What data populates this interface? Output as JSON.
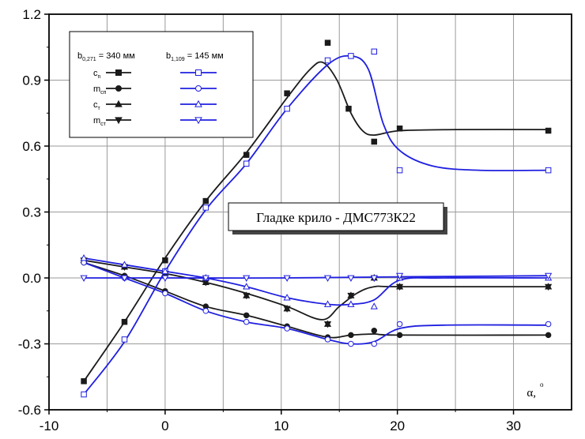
{
  "chart_data": {
    "type": "line",
    "xlabel": "α,",
    "xlabel_sup": "o",
    "xlim": [
      -10,
      35
    ],
    "ylim": [
      -0.6,
      1.2
    ],
    "xticks": [
      "-10",
      "0",
      "10",
      "20",
      "30"
    ],
    "yticks": [
      "-0.6",
      "-0.3",
      "0.0",
      "0.3",
      "0.6",
      "0.9",
      "1.2"
    ],
    "xtick_values": [
      -10,
      0,
      10,
      20,
      30
    ],
    "ytick_values": [
      -0.6,
      -0.3,
      0.0,
      0.3,
      0.6,
      0.9,
      1.2
    ],
    "grid": true,
    "annotation": "Гладке крило - ДМС773К22",
    "legend": {
      "placement": "top-left",
      "col1_header": {
        "base": "b",
        "sub": "0,271",
        "rest": " = 340 мм"
      },
      "col2_header": {
        "base": "b",
        "sub": "1,109",
        "rest": " = 145 мм"
      },
      "rows": [
        {
          "base": "c",
          "sub": "n"
        },
        {
          "base": "m",
          "sub": "сп"
        },
        {
          "base": "c",
          "sub": "т"
        },
        {
          "base": "m",
          "sub": "ст"
        }
      ]
    },
    "colors": {
      "b0271": "#1a1a1a",
      "b1109": "#1f1fe0"
    },
    "series": [
      {
        "group": "b0271",
        "marker": "square",
        "filled": true,
        "points": [
          [
            -7,
            -0.47
          ],
          [
            -3.5,
            -0.2
          ],
          [
            0,
            0.08
          ],
          [
            3.5,
            0.35
          ],
          [
            7,
            0.56
          ],
          [
            10.5,
            0.84
          ],
          [
            14,
            1.07
          ],
          [
            15.8,
            0.77
          ],
          [
            18,
            0.62
          ],
          [
            20.2,
            0.68
          ],
          [
            33,
            0.67
          ]
        ],
        "curve": [
          [
            -7,
            -0.47
          ],
          [
            -3.5,
            -0.2
          ],
          [
            0,
            0.09
          ],
          [
            3.5,
            0.35
          ],
          [
            7,
            0.57
          ],
          [
            10.5,
            0.82
          ],
          [
            12.5,
            0.95
          ],
          [
            13.6,
            0.98
          ],
          [
            14.8,
            0.9
          ],
          [
            16,
            0.75
          ],
          [
            17,
            0.67
          ],
          [
            18,
            0.65
          ],
          [
            20.2,
            0.67
          ],
          [
            25,
            0.675
          ],
          [
            33,
            0.675
          ]
        ]
      },
      {
        "group": "b0271",
        "marker": "circle",
        "filled": true,
        "points": [
          [
            -7,
            0.07
          ],
          [
            -3.5,
            0.01
          ],
          [
            0,
            -0.06
          ],
          [
            3.5,
            -0.13
          ],
          [
            7,
            -0.17
          ],
          [
            10.5,
            -0.22
          ],
          [
            14,
            -0.27
          ],
          [
            16,
            -0.26
          ],
          [
            18,
            -0.24
          ],
          [
            20.2,
            -0.26
          ],
          [
            33,
            -0.26
          ]
        ],
        "curve": [
          [
            -7,
            0.07
          ],
          [
            -3.5,
            0.01
          ],
          [
            0,
            -0.06
          ],
          [
            3.5,
            -0.13
          ],
          [
            7,
            -0.17
          ],
          [
            10.5,
            -0.22
          ],
          [
            14,
            -0.27
          ],
          [
            16,
            -0.26
          ],
          [
            18,
            -0.255
          ],
          [
            20.2,
            -0.26
          ],
          [
            33,
            -0.26
          ]
        ]
      },
      {
        "group": "b0271",
        "marker": "triangle-up",
        "filled": true,
        "points": [
          [
            -7,
            0.08
          ],
          [
            -3.5,
            0.05
          ],
          [
            0,
            0.02
          ],
          [
            3.5,
            -0.02
          ],
          [
            7,
            -0.08
          ],
          [
            10.5,
            -0.14
          ],
          [
            14,
            -0.21
          ],
          [
            16,
            -0.08
          ],
          [
            18,
            0.0
          ],
          [
            20.2,
            -0.04
          ],
          [
            33,
            -0.04
          ]
        ],
        "curve": [
          [
            -7,
            0.08
          ],
          [
            -3.5,
            0.05
          ],
          [
            0,
            0.02
          ],
          [
            3.5,
            -0.02
          ],
          [
            7,
            -0.07
          ],
          [
            10.5,
            -0.13
          ],
          [
            13.5,
            -0.19
          ],
          [
            15,
            -0.13
          ],
          [
            16.5,
            -0.07
          ],
          [
            18,
            -0.04
          ],
          [
            20.2,
            -0.04
          ],
          [
            33,
            -0.04
          ]
        ]
      },
      {
        "group": "b0271",
        "marker": "triangle-down",
        "filled": true,
        "points": [
          [
            -7,
            0.08
          ],
          [
            -3.5,
            0.05
          ],
          [
            0,
            0.02
          ],
          [
            3.5,
            -0.02
          ],
          [
            7,
            -0.08
          ],
          [
            10.5,
            -0.14
          ],
          [
            14,
            -0.21
          ],
          [
            16,
            -0.08
          ],
          [
            18,
            0.0
          ],
          [
            20.2,
            -0.04
          ],
          [
            33,
            -0.04
          ]
        ],
        "curve": []
      },
      {
        "group": "b1109",
        "marker": "square",
        "filled": false,
        "points": [
          [
            -7,
            -0.53
          ],
          [
            -3.5,
            -0.28
          ],
          [
            0,
            0.03
          ],
          [
            3.5,
            0.32
          ],
          [
            7,
            0.52
          ],
          [
            10.5,
            0.77
          ],
          [
            14,
            0.99
          ],
          [
            16,
            1.01
          ],
          [
            18,
            1.03
          ],
          [
            20.2,
            0.49
          ],
          [
            33,
            0.49
          ]
        ],
        "curve": [
          [
            -7,
            -0.53
          ],
          [
            -3.5,
            -0.29
          ],
          [
            0,
            0.03
          ],
          [
            3.5,
            0.31
          ],
          [
            7,
            0.52
          ],
          [
            10.5,
            0.77
          ],
          [
            14,
            0.97
          ],
          [
            16,
            1.01
          ],
          [
            17.5,
            0.95
          ],
          [
            18.8,
            0.7
          ],
          [
            20.2,
            0.58
          ],
          [
            23,
            0.51
          ],
          [
            27,
            0.49
          ],
          [
            33,
            0.49
          ]
        ]
      },
      {
        "group": "b1109",
        "marker": "circle",
        "filled": false,
        "points": [
          [
            -7,
            0.07
          ],
          [
            -3.5,
            0.0
          ],
          [
            0,
            -0.07
          ],
          [
            3.5,
            -0.15
          ],
          [
            7,
            -0.2
          ],
          [
            10.5,
            -0.23
          ],
          [
            14,
            -0.28
          ],
          [
            16,
            -0.3
          ],
          [
            18,
            -0.3
          ],
          [
            20.2,
            -0.21
          ],
          [
            33,
            -0.21
          ]
        ],
        "curve": [
          [
            -7,
            0.07
          ],
          [
            -3.5,
            0.0
          ],
          [
            0,
            -0.07
          ],
          [
            3.5,
            -0.15
          ],
          [
            7,
            -0.2
          ],
          [
            10.5,
            -0.23
          ],
          [
            14,
            -0.28
          ],
          [
            16,
            -0.3
          ],
          [
            18,
            -0.29
          ],
          [
            20.2,
            -0.23
          ],
          [
            24,
            -0.215
          ],
          [
            33,
            -0.215
          ]
        ]
      },
      {
        "group": "b1109",
        "marker": "triangle-up",
        "filled": false,
        "points": [
          [
            -7,
            0.09
          ],
          [
            -3.5,
            0.06
          ],
          [
            0,
            0.03
          ],
          [
            3.5,
            0.0
          ],
          [
            7,
            -0.04
          ],
          [
            10.5,
            -0.09
          ],
          [
            14,
            -0.12
          ],
          [
            16,
            -0.12
          ],
          [
            18,
            -0.13
          ],
          [
            20.2,
            0.0
          ],
          [
            33,
            0.0
          ]
        ],
        "curve": [
          [
            -7,
            0.09
          ],
          [
            -3.5,
            0.06
          ],
          [
            0,
            0.03
          ],
          [
            3.5,
            0.0
          ],
          [
            7,
            -0.04
          ],
          [
            10.5,
            -0.09
          ],
          [
            14,
            -0.12
          ],
          [
            16,
            -0.12
          ],
          [
            18,
            -0.1
          ],
          [
            20.2,
            -0.01
          ],
          [
            24,
            0.0
          ],
          [
            33,
            0.0
          ]
        ]
      },
      {
        "group": "b1109",
        "marker": "triangle-down",
        "filled": false,
        "points": [
          [
            -7,
            0.0
          ],
          [
            -3.5,
            0.0
          ],
          [
            0,
            0.0
          ],
          [
            3.5,
            0.0
          ],
          [
            7,
            0.0
          ],
          [
            10.5,
            0.0
          ],
          [
            14,
            0.0
          ],
          [
            16,
            0.0
          ],
          [
            18,
            0.0
          ],
          [
            20.2,
            0.01
          ],
          [
            33,
            0.01
          ]
        ],
        "curve": [
          [
            -7,
            0.0
          ],
          [
            0,
            0.0
          ],
          [
            10,
            0.0
          ],
          [
            20.2,
            0.005
          ],
          [
            33,
            0.01
          ]
        ]
      }
    ]
  }
}
